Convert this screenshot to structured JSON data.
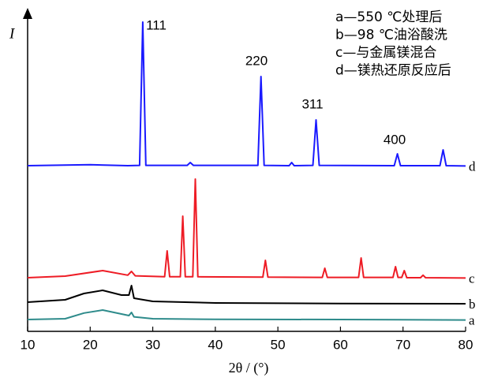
{
  "chart_data": {
    "type": "line",
    "ylabel": "I",
    "xlabel": "2θ / (°)",
    "legend_texts": [
      "a—550 ℃处理后",
      "b—98 ℃油浴酸洗",
      "c—与金属镁混合",
      "d—镁热还原反应后"
    ],
    "annotations": [
      "111",
      "220",
      "311",
      "400"
    ],
    "xlim": [
      10,
      80
    ],
    "xticks": [
      10,
      20,
      30,
      40,
      50,
      60,
      70,
      80
    ],
    "ylim": [
      0,
      100
    ],
    "series": [
      {
        "name": "d",
        "color": "#1a1aff",
        "x": [
          10,
          20,
          26,
          27.9,
          28.4,
          28.9,
          35.5,
          36,
          36.5,
          46.8,
          47.3,
          47.8,
          51.8,
          52.2,
          52.6,
          55.6,
          56.1,
          56.6,
          68.6,
          69.1,
          69.6,
          75.9,
          76.4,
          76.9,
          80
        ],
        "values": [
          52.5,
          52.8,
          52.5,
          52.6,
          98,
          52.6,
          52.6,
          53.5,
          52.6,
          52.6,
          80.75,
          52.6,
          52.5,
          53.5,
          52.5,
          52.6,
          67,
          52.6,
          52.5,
          56.25,
          52.5,
          52.5,
          57.5,
          52.5,
          52.4
        ]
      },
      {
        "name": "c",
        "color": "#ee1c25",
        "x": [
          10,
          16,
          22,
          26,
          26.6,
          27.2,
          31.9,
          32.3,
          32.7,
          34.4,
          34.8,
          35.2,
          36.4,
          36.8,
          37.2,
          47.6,
          48,
          48.4,
          57.1,
          57.5,
          57.9,
          62.9,
          63.3,
          63.7,
          68.4,
          68.8,
          69.2,
          69.8,
          70.2,
          70.6,
          72.8,
          73.2,
          73.6,
          80
        ],
        "values": [
          17,
          17.5,
          19.25,
          17.8,
          19,
          17.6,
          17.3,
          25.5,
          17.3,
          17.3,
          36.5,
          17.3,
          17.3,
          48.25,
          17.3,
          17.2,
          22.5,
          17.2,
          17.1,
          20,
          17.1,
          17.1,
          23.25,
          17.1,
          17.1,
          20.5,
          17.1,
          17.1,
          19.25,
          17,
          17,
          17.8,
          17,
          16.9
        ]
      },
      {
        "name": "b",
        "color": "#000000",
        "x": [
          10,
          16,
          19,
          22,
          25,
          26.2,
          26.6,
          27,
          30,
          40,
          60,
          80
        ],
        "values": [
          9.25,
          10,
          12,
          13,
          11.5,
          11.5,
          14.5,
          10.5,
          9.5,
          9,
          8.8,
          8.75
        ]
      },
      {
        "name": "a",
        "color": "#2e8b8b",
        "x": [
          10,
          16,
          19,
          22,
          25,
          26.2,
          26.6,
          27,
          30,
          40,
          60,
          80
        ],
        "values": [
          3.75,
          4,
          5.8,
          6.75,
          5.5,
          5,
          6,
          4.6,
          4,
          3.8,
          3.75,
          3.6
        ]
      }
    ]
  }
}
